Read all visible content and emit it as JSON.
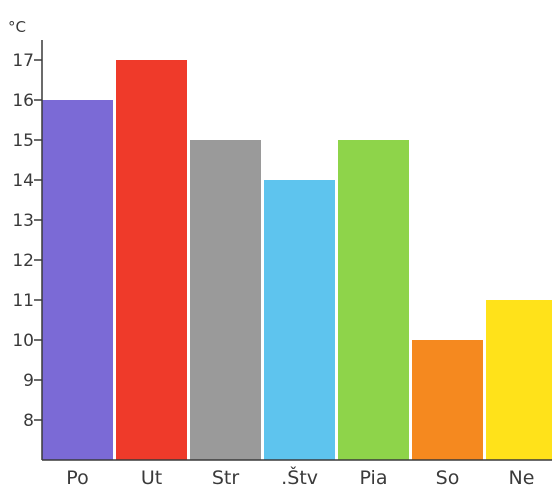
{
  "chart_data": {
    "type": "bar",
    "title": "",
    "xlabel": "",
    "ylabel": "°C",
    "categories": [
      "Po",
      "Ut",
      "Str",
      "․Štv",
      "Pia",
      "So",
      "Ne"
    ],
    "values": [
      16,
      17,
      15,
      14,
      15,
      10,
      11
    ],
    "colors": [
      "#7b6ad6",
      "#ef3a2a",
      "#9a9a9a",
      "#5ec4ee",
      "#8ed44a",
      "#f5891f",
      "#ffe21a"
    ],
    "yticks": [
      8,
      9,
      10,
      11,
      12,
      13,
      14,
      15,
      16,
      17
    ],
    "ylim": [
      7,
      17.5
    ],
    "grid": false,
    "legend": "none"
  }
}
